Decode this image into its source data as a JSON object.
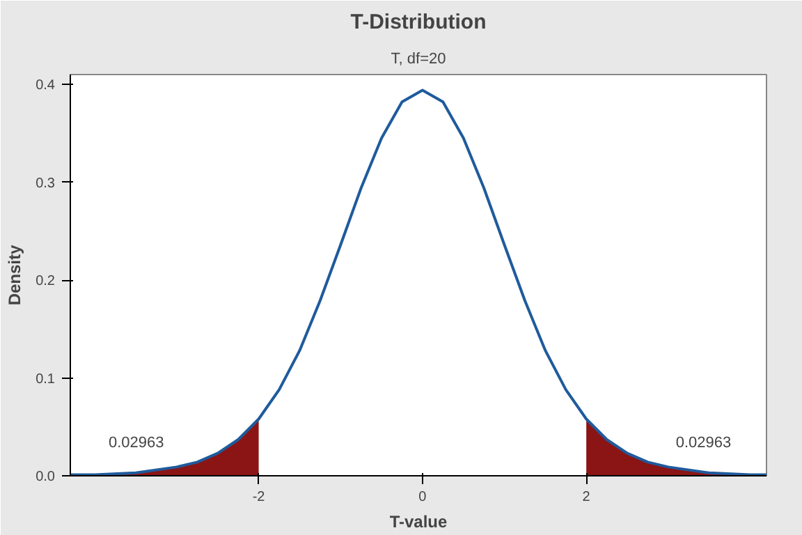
{
  "chart_data": {
    "type": "line",
    "title": "T-Distribution",
    "subtitle": "T, df=20",
    "xlabel": "T-value",
    "ylabel": "Density",
    "xlim": [
      -4.3,
      4.2
    ],
    "xticks": [
      -2,
      0,
      2
    ],
    "ylim": [
      0,
      0.41
    ],
    "yticks": [
      {
        "value": 0,
        "label": "0.0"
      },
      0.1,
      0.2,
      0.3,
      0.4
    ],
    "grid": false,
    "marker": "none",
    "line_style": "solid",
    "series": [
      {
        "type": "area",
        "color": "#8b1414",
        "x": [
          -4.3,
          -4.0,
          -3.5,
          -3.0,
          -2.75,
          -2.5,
          -2.25,
          -2.0
        ],
        "values": [
          0.001,
          0.001,
          0.003,
          0.009,
          0.014,
          0.023,
          0.037,
          0.058
        ]
      },
      {
        "type": "area",
        "color": "#8b1414",
        "x": [
          2.0,
          2.25,
          2.5,
          2.75,
          3.0,
          3.5,
          4.0,
          4.2
        ],
        "values": [
          0.058,
          0.037,
          0.023,
          0.014,
          0.009,
          0.003,
          0.001,
          0.001
        ]
      },
      {
        "color": "#1f5b9c",
        "x": [
          -4.3,
          -4.0,
          -3.5,
          -3.0,
          -2.75,
          -2.5,
          -2.25,
          -2.0,
          -1.75,
          -1.5,
          -1.25,
          -1.0,
          -0.75,
          -0.5,
          -0.25,
          0,
          0.25,
          0.5,
          0.75,
          1.0,
          1.25,
          1.5,
          1.75,
          2.0,
          2.25,
          2.5,
          2.75,
          3.0,
          3.5,
          4.0,
          4.2
        ],
        "values": [
          0.001,
          0.001,
          0.003,
          0.009,
          0.014,
          0.023,
          0.037,
          0.058,
          0.088,
          0.128,
          0.179,
          0.236,
          0.294,
          0.345,
          0.382,
          0.394,
          0.382,
          0.345,
          0.294,
          0.236,
          0.179,
          0.128,
          0.088,
          0.058,
          0.037,
          0.023,
          0.014,
          0.009,
          0.003,
          0.001,
          0.001
        ]
      }
    ],
    "annotations": [
      "0.02963",
      "0.02963"
    ]
  }
}
